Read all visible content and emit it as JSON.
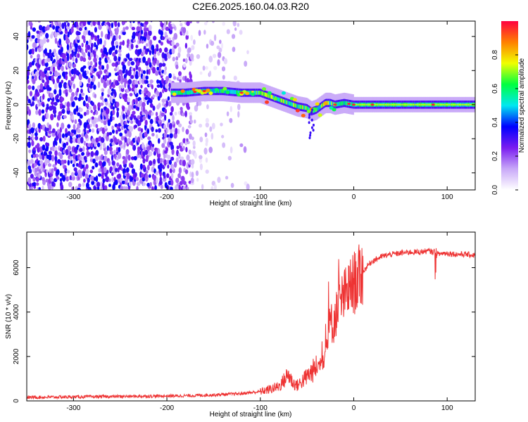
{
  "title": "C2E6.2025.160.04.03.R20",
  "chart_data": [
    {
      "type": "heatmap",
      "xlabel": "Height of straight line (km)",
      "ylabel": "Frequency (Hz)",
      "xlim": [
        -350,
        130
      ],
      "ylim": [
        -50,
        49
      ],
      "xticks": [
        -300,
        -200,
        -100,
        0,
        100
      ],
      "yticks": [
        -40,
        -20,
        0,
        20,
        40
      ],
      "colorbar": {
        "label": "Normalized spectral amplitude",
        "range": [
          0,
          1
        ],
        "ticks": [
          0.0,
          0.2,
          0.4,
          0.6,
          0.8
        ],
        "tick_labels": [
          "0.0",
          "0.2",
          "0.4",
          "0.6",
          "0.8"
        ],
        "colors": [
          "#ffffff",
          "#c8a8f8",
          "#7a1cf0",
          "#0000ff",
          "#00e8f0",
          "#00ff40",
          "#f0ff00",
          "#ff8000",
          "#ff0040"
        ]
      },
      "dominant_frequency_track": {
        "x": [
          -195,
          -180,
          -160,
          -140,
          -120,
          -100,
          -90,
          -80,
          -70,
          -60,
          -50,
          -45,
          -40,
          -35,
          -30,
          -25,
          -20,
          -10,
          0,
          20,
          50,
          90,
          130
        ],
        "y": [
          7,
          7,
          8,
          8,
          7,
          7,
          5,
          3,
          1,
          -1,
          -2,
          -4,
          -3,
          -1,
          1,
          1,
          0,
          1,
          0,
          0,
          0,
          0,
          0
        ]
      }
    },
    {
      "type": "line",
      "xlabel": "Height of straight line (km)",
      "ylabel": "SNR (10 * v/v)",
      "xlim": [
        -350,
        130
      ],
      "ylim": [
        0,
        7600
      ],
      "xticks": [
        -300,
        -200,
        -100,
        0,
        100
      ],
      "yticks": [
        0,
        2000,
        4000,
        6000
      ],
      "line_color": "#ee3333",
      "x": [
        -350,
        -300,
        -250,
        -200,
        -170,
        -150,
        -120,
        -100,
        -90,
        -80,
        -75,
        -70,
        -65,
        -60,
        -55,
        -50,
        -45,
        -40,
        -35,
        -30,
        -27,
        -25,
        -22,
        -20,
        -17,
        -15,
        -12,
        -10,
        -7,
        -5,
        0,
        5,
        10,
        15,
        20,
        25,
        30,
        40,
        50,
        60,
        70,
        80,
        85,
        88,
        90,
        95,
        100,
        110,
        120,
        130
      ],
      "y": [
        160,
        180,
        200,
        220,
        240,
        270,
        330,
        420,
        520,
        650,
        900,
        1200,
        800,
        700,
        900,
        1100,
        1300,
        1500,
        1700,
        2200,
        3000,
        3600,
        3400,
        3800,
        4100,
        4300,
        4600,
        4700,
        4900,
        5000,
        5300,
        5500,
        5800,
        6100,
        6300,
        6400,
        6500,
        6600,
        6650,
        6700,
        6700,
        6750,
        6700,
        6800,
        6600,
        6650,
        6650,
        6600,
        6600,
        6550
      ]
    }
  ]
}
